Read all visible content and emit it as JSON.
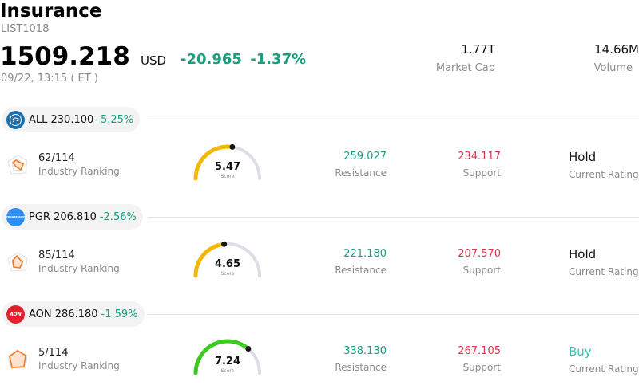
{
  "header": {
    "title": "Insurance",
    "code": "LIST1018",
    "price": "1509.218",
    "currency": "USD",
    "change": "-20.965",
    "change_pct": "-1.37%",
    "time": "09/22, 13:15  ( ET )",
    "market_cap_value": "1.77T",
    "market_cap_label": "Market Cap",
    "volume_value": "14.66M",
    "volume_label": "Volume"
  },
  "stocks": [
    {
      "symbol": "ALL 230.100",
      "pct": "-5.25%",
      "logo_icon": "allstate-logo",
      "logo_color": "#1f6fa8",
      "ranking": "62/114",
      "ranking_label": "Industry Ranking",
      "score": "5.47",
      "score_value": 5.47,
      "score_label": "Score",
      "gauge_color": "#f5b800",
      "resistance": "259.027",
      "resistance_label": "Resistance",
      "support": "234.117",
      "support_label": "Support",
      "rating": "Hold",
      "rating_label": "Current Rating"
    },
    {
      "symbol": "PGR 206.810",
      "pct": "-2.56%",
      "logo_icon": "progressive-logo",
      "logo_color": "#2f8ef0",
      "logo_text": "PROGRESSIVE",
      "ranking": "85/114",
      "ranking_label": "Industry Ranking",
      "score": "4.65",
      "score_value": 4.65,
      "score_label": "Score",
      "gauge_color": "#f5b800",
      "resistance": "221.180",
      "resistance_label": "Resistance",
      "support": "207.570",
      "support_label": "Support",
      "rating": "Hold",
      "rating_label": "Current Rating"
    },
    {
      "symbol": "AON 286.180",
      "pct": "-1.59%",
      "logo_icon": "aon-logo",
      "logo_color": "#e4202e",
      "logo_text": "AON",
      "ranking": "5/114",
      "ranking_label": "Industry Ranking",
      "score": "7.24",
      "score_value": 7.24,
      "score_label": "Score",
      "gauge_color": "#3ccb1e",
      "resistance": "338.130",
      "resistance_label": "Resistance",
      "support": "267.105",
      "support_label": "Support",
      "rating": "Buy",
      "rating_label": "Current Rating"
    }
  ]
}
